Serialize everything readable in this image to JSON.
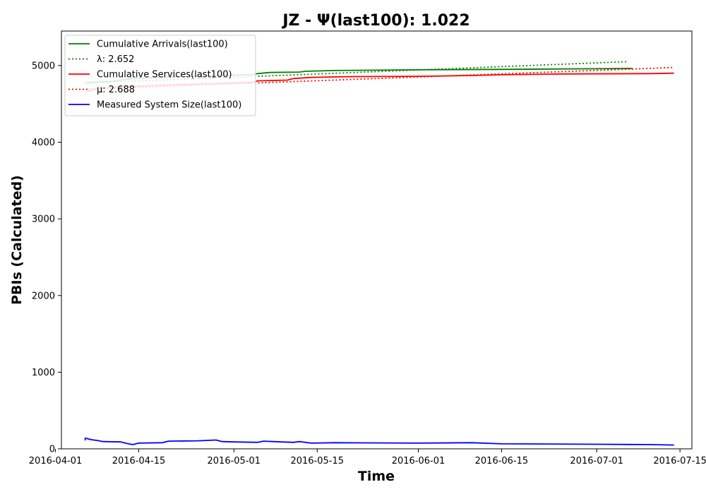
{
  "chart_data": {
    "type": "line",
    "title": "JZ -  Ψ(last100): 1.022",
    "xlabel": "Time",
    "ylabel": "PBIs (Calculated)",
    "xlim": [
      "2016-04-02",
      "2016-07-17"
    ],
    "ylim": [
      0,
      5450
    ],
    "x_ticks": [
      "2016-04-01",
      "2016-04-15",
      "2016-05-01",
      "2016-05-15",
      "2016-06-01",
      "2016-06-15",
      "2016-07-01",
      "2016-07-15"
    ],
    "y_ticks": [
      0,
      1000,
      2000,
      3000,
      4000,
      5000
    ],
    "grid": false,
    "legend_position": "top-left",
    "series": [
      {
        "name": "Cumulative Arrivals(last100)",
        "color": "#008000",
        "style": "solid",
        "points": [
          [
            "2016-04-06",
            4780
          ],
          [
            "2016-04-10",
            4790
          ],
          [
            "2016-04-14",
            4830
          ],
          [
            "2016-04-20",
            4850
          ],
          [
            "2016-04-28",
            4870
          ],
          [
            "2016-05-04",
            4880
          ],
          [
            "2016-05-05",
            4895
          ],
          [
            "2016-05-07",
            4910
          ],
          [
            "2016-05-12",
            4915
          ],
          [
            "2016-05-13",
            4925
          ],
          [
            "2016-05-18",
            4935
          ],
          [
            "2016-06-01",
            4945
          ],
          [
            "2016-06-15",
            4950
          ],
          [
            "2016-07-01",
            4958
          ],
          [
            "2016-07-07",
            4962
          ]
        ]
      },
      {
        "name": "λ: 2.652",
        "color": "#008000",
        "style": "dotted",
        "points": [
          [
            "2016-04-06",
            4770
          ],
          [
            "2016-07-06",
            5050
          ]
        ]
      },
      {
        "name": "Cumulative Services(last100)",
        "color": "#ff0000",
        "style": "solid",
        "points": [
          [
            "2016-04-06",
            4650
          ],
          [
            "2016-04-08",
            4700
          ],
          [
            "2016-04-12",
            4720
          ],
          [
            "2016-04-18",
            4740
          ],
          [
            "2016-04-28",
            4765
          ],
          [
            "2016-05-04",
            4780
          ],
          [
            "2016-05-05",
            4800
          ],
          [
            "2016-05-10",
            4810
          ],
          [
            "2016-05-11",
            4830
          ],
          [
            "2016-05-14",
            4845
          ],
          [
            "2016-05-20",
            4855
          ],
          [
            "2016-06-01",
            4860
          ],
          [
            "2016-06-10",
            4870
          ],
          [
            "2016-06-15",
            4880
          ],
          [
            "2016-06-25",
            4890
          ],
          [
            "2016-07-10",
            4895
          ],
          [
            "2016-07-14",
            4900
          ]
        ]
      },
      {
        "name": "μ: 2.688",
        "color": "#ff0000",
        "style": "dotted",
        "points": [
          [
            "2016-04-06",
            4690
          ],
          [
            "2016-07-14",
            4975
          ]
        ]
      },
      {
        "name": "Measured System Size(last100)",
        "color": "#0000ff",
        "style": "solid",
        "points": [
          [
            "2016-04-06",
            110
          ],
          [
            "2016-04-06",
            140
          ],
          [
            "2016-04-07",
            120
          ],
          [
            "2016-04-08",
            110
          ],
          [
            "2016-04-09",
            95
          ],
          [
            "2016-04-12",
            90
          ],
          [
            "2016-04-13",
            70
          ],
          [
            "2016-04-14",
            55
          ],
          [
            "2016-04-15",
            75
          ],
          [
            "2016-04-19",
            80
          ],
          [
            "2016-04-20",
            100
          ],
          [
            "2016-04-25",
            105
          ],
          [
            "2016-04-28",
            115
          ],
          [
            "2016-04-29",
            95
          ],
          [
            "2016-05-01",
            90
          ],
          [
            "2016-05-05",
            85
          ],
          [
            "2016-05-06",
            100
          ],
          [
            "2016-05-09",
            90
          ],
          [
            "2016-05-11",
            85
          ],
          [
            "2016-05-12",
            95
          ],
          [
            "2016-05-14",
            75
          ],
          [
            "2016-05-18",
            80
          ],
          [
            "2016-06-01",
            75
          ],
          [
            "2016-06-10",
            80
          ],
          [
            "2016-06-15",
            65
          ],
          [
            "2016-07-01",
            60
          ],
          [
            "2016-07-10",
            55
          ],
          [
            "2016-07-14",
            50
          ]
        ]
      }
    ]
  }
}
